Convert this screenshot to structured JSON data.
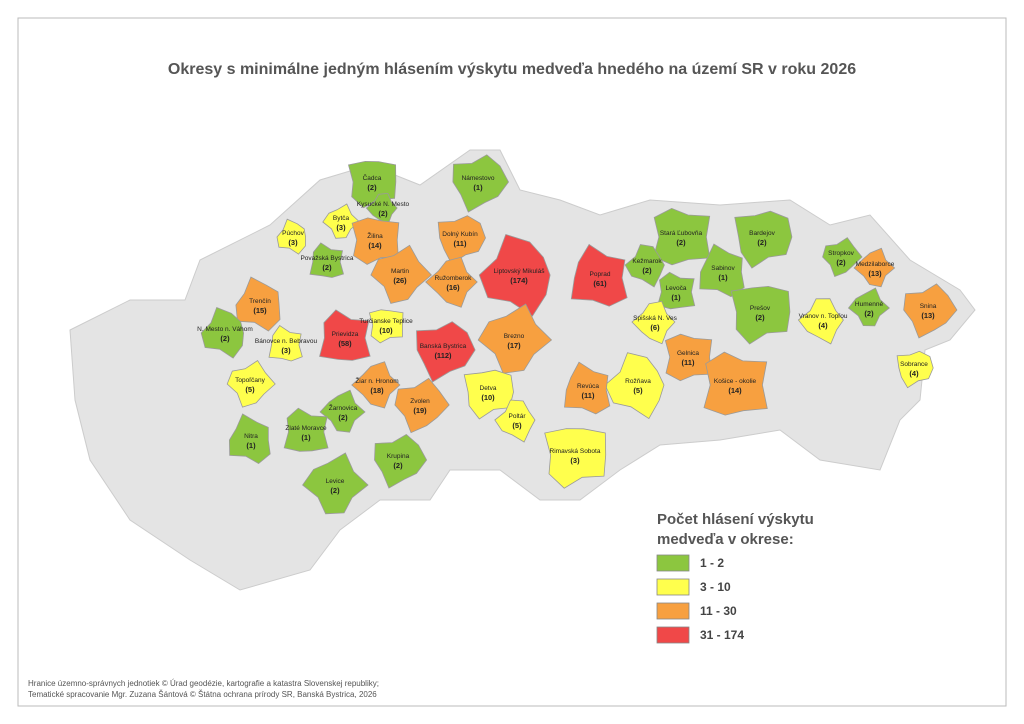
{
  "title": "Okresy s minimálne jedným hlásením výskytu medveďa hnedého na území SR v roku 2026",
  "districts": [
    {
      "name": "Čadca",
      "count": "(2)",
      "color": "#8cc63f"
    },
    {
      "name": "Námestovo",
      "count": "(1)",
      "color": "#8cc63f"
    },
    {
      "name": "Bytča",
      "count": "(3)",
      "color": "#ffff4d"
    },
    {
      "name": "Kysucké N. Mesto",
      "count": "(2)",
      "color": "#8cc63f"
    },
    {
      "name": "Púchov",
      "count": "(3)",
      "color": "#ffff4d"
    },
    {
      "name": "Považská Bystrica",
      "count": "(2)",
      "color": "#8cc63f"
    },
    {
      "name": "Žilina",
      "count": "(14)",
      "color": "#f7a040"
    },
    {
      "name": "Dolný Kubín",
      "count": "(11)",
      "color": "#f7a040"
    },
    {
      "name": "Martin",
      "count": "(26)",
      "color": "#f7a040"
    },
    {
      "name": "Ružomberok",
      "count": "(16)",
      "color": "#f7a040"
    },
    {
      "name": "Liptovský Mikuláš",
      "count": "(174)",
      "color": "#f04848"
    },
    {
      "name": "Poprad",
      "count": "(61)",
      "color": "#f04848"
    },
    {
      "name": "Stará Ľubovňa",
      "count": "(2)",
      "color": "#8cc63f"
    },
    {
      "name": "Bardejov",
      "count": "(2)",
      "color": "#8cc63f"
    },
    {
      "name": "Stropkov",
      "count": "(2)",
      "color": "#8cc63f"
    },
    {
      "name": "Medzilaborce",
      "count": "(13)",
      "color": "#f7a040"
    },
    {
      "name": "Kežmarok",
      "count": "(2)",
      "color": "#8cc63f"
    },
    {
      "name": "Sabinov",
      "count": "(1)",
      "color": "#8cc63f"
    },
    {
      "name": "Levoča",
      "count": "(1)",
      "color": "#8cc63f"
    },
    {
      "name": "Prešov",
      "count": "(2)",
      "color": "#8cc63f"
    },
    {
      "name": "Snina",
      "count": "(13)",
      "color": "#f7a040"
    },
    {
      "name": "Humenné",
      "count": "(2)",
      "color": "#8cc63f"
    },
    {
      "name": "Vranov n. Topľou",
      "count": "(4)",
      "color": "#ffff4d"
    },
    {
      "name": "Trenčín",
      "count": "(15)",
      "color": "#f7a040"
    },
    {
      "name": "Prievidza",
      "count": "(58)",
      "color": "#f04848"
    },
    {
      "name": "Turčianske Teplice",
      "count": "(10)",
      "color": "#ffff4d"
    },
    {
      "name": "Banská Bystrica",
      "count": "(112)",
      "color": "#f04848"
    },
    {
      "name": "Brezno",
      "count": "(17)",
      "color": "#f7a040"
    },
    {
      "name": "Spišská N. Ves",
      "count": "(6)",
      "color": "#ffff4d"
    },
    {
      "name": "N. Mesto n. Váhom",
      "count": "(2)",
      "color": "#8cc63f"
    },
    {
      "name": "Bánovce n. Bebravou",
      "count": "(3)",
      "color": "#ffff4d"
    },
    {
      "name": "Gelnica",
      "count": "(11)",
      "color": "#f7a040"
    },
    {
      "name": "Sobrance",
      "count": "(4)",
      "color": "#ffff4d"
    },
    {
      "name": "Topoľčany",
      "count": "(5)",
      "color": "#ffff4d"
    },
    {
      "name": "Žiar n. Hronom",
      "count": "(18)",
      "color": "#f7a040"
    },
    {
      "name": "Rožňava",
      "count": "(5)",
      "color": "#ffff4d"
    },
    {
      "name": "Revúca",
      "count": "(11)",
      "color": "#f7a040"
    },
    {
      "name": "Košice - okolie",
      "count": "(14)",
      "color": "#f7a040"
    },
    {
      "name": "Detva",
      "count": "(10)",
      "color": "#ffff4d"
    },
    {
      "name": "Zvolen",
      "count": "(19)",
      "color": "#f7a040"
    },
    {
      "name": "Žarnovica",
      "count": "(2)",
      "color": "#8cc63f"
    },
    {
      "name": "Poltár",
      "count": "(5)",
      "color": "#ffff4d"
    },
    {
      "name": "Nitra",
      "count": "(1)",
      "color": "#8cc63f"
    },
    {
      "name": "Zlaté Moravce",
      "count": "(1)",
      "color": "#8cc63f"
    },
    {
      "name": "Rimavská Sobota",
      "count": "(3)",
      "color": "#ffff4d"
    },
    {
      "name": "Krupina",
      "count": "(2)",
      "color": "#8cc63f"
    },
    {
      "name": "Levice",
      "count": "(2)",
      "color": "#8cc63f"
    }
  ],
  "legend": {
    "title_lines": [
      "Počet hlásení výskytu",
      "medveďa v okrese:"
    ],
    "items": [
      {
        "label": "1 - 2",
        "color": "#8cc63f"
      },
      {
        "label": "3 - 10",
        "color": "#ffff4d"
      },
      {
        "label": "11 - 30",
        "color": "#f7a040"
      },
      {
        "label": "31 - 174",
        "color": "#f04848"
      }
    ]
  },
  "footer": [
    "Hranice územno-správnych jednotiek © Úrad geodézie, kartografie a katastra Slovenskej republiky;",
    "Tematické spracovanie Mgr. Zuzana Šántová © Štátna ochrana prírody SR, Banská Bystrica, 2026"
  ]
}
